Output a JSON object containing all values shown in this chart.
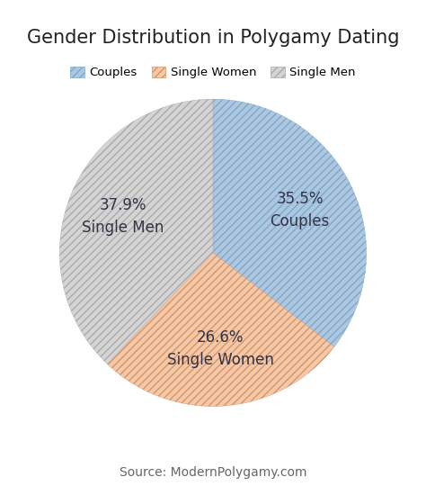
{
  "title": "Gender Distribution in Polygamy Dating",
  "source": "Source: ModernPolygamy.com",
  "labels": [
    "Couples",
    "Single Women",
    "Single Men"
  ],
  "values": [
    35.5,
    26.6,
    37.9
  ],
  "colors": [
    "#aec6e0",
    "#f5c8a8",
    "#d4d4d4"
  ],
  "hatch_patterns": [
    "////",
    "////",
    "////"
  ],
  "hatch_edge_colors": [
    "#7aaac8",
    "#d4956a",
    "#aaaaaa"
  ],
  "autopct_labels": [
    "35.5%\nCouples",
    "26.6%\nSingle Women",
    "37.9%\nSingle Men"
  ],
  "startangle": 90,
  "counterclock": false,
  "legend_labels": [
    "Couples",
    "Single Women",
    "Single Men"
  ],
  "title_fontsize": 15,
  "label_fontsize": 12,
  "source_fontsize": 10,
  "background_color": "#ffffff",
  "wedge_edge_color": "#ffffff",
  "text_color": "#333344"
}
